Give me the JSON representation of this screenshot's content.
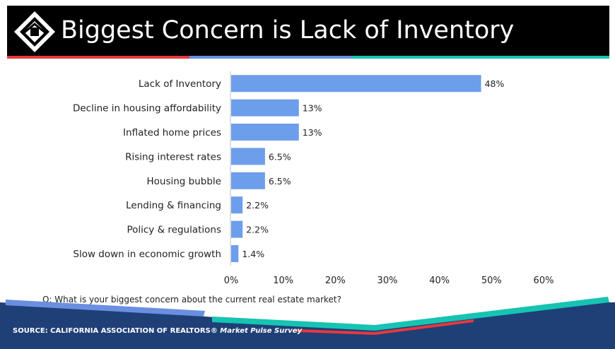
{
  "slide": {
    "title": "Biggest Concern is Lack of Inventory",
    "question": "Q: What is your biggest concern about the current real estate market?",
    "source_prefix": "SOURCE:  CALIFORNIA ASSOCIATION OF REALTORS®",
    "source_suffix": " Market Pulse Survey",
    "logo_icon": "house-logo-icon"
  },
  "colors": {
    "header_bg": "#000000",
    "bar": "#6d9eeb",
    "accent_red": "#e8383d",
    "accent_teal": "#17c3b2",
    "accent_blue": "#6a8fe0",
    "footer_navy": "#1f3f77"
  },
  "chart_data": {
    "type": "bar",
    "orientation": "horizontal",
    "categories": [
      "Lack of Inventory",
      "Decline in housing affordability",
      "Inflated home prices",
      "Rising interest rates",
      "Housing bubble",
      "Lending & financing",
      "Policy & regulations",
      "Slow down in economic growth"
    ],
    "values": [
      48,
      13,
      13,
      6.5,
      6.5,
      2.2,
      2.2,
      1.4
    ],
    "value_labels": [
      "48%",
      "13%",
      "13%",
      "6.5%",
      "6.5%",
      "2.2%",
      "2.2%",
      "1.4%"
    ],
    "xlim": [
      0,
      60
    ],
    "xticks": [
      0,
      10,
      20,
      30,
      40,
      50,
      60
    ],
    "xtick_labels": [
      "0%",
      "10%",
      "20%",
      "30%",
      "40%",
      "50%",
      "60%"
    ],
    "grid": false,
    "legend": "none"
  }
}
